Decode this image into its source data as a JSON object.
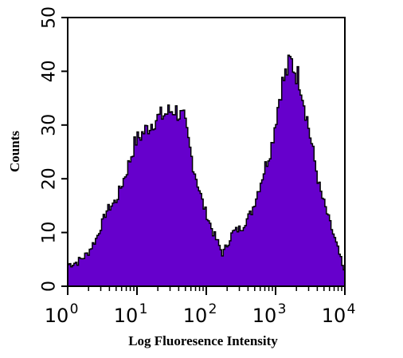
{
  "chart_data": {
    "type": "area",
    "title": "",
    "xlabel": "Log Fluoresence Intensity",
    "ylabel": "Counts",
    "x_scale": "log",
    "xlim": [
      1,
      10000
    ],
    "ylim": [
      0,
      50
    ],
    "yticks": [
      0,
      10,
      20,
      30,
      40,
      50
    ],
    "yticklabels": [
      "0",
      "10",
      "20",
      "30",
      "40",
      "50"
    ],
    "xticks": [
      1,
      10,
      100,
      1000,
      10000
    ],
    "xticklabels": [
      {
        "base": "10",
        "exp": "0"
      },
      {
        "base": "10",
        "exp": "1"
      },
      {
        "base": "10",
        "exp": "2"
      },
      {
        "base": "10",
        "exp": "3"
      },
      {
        "base": "10",
        "exp": "4"
      }
    ],
    "grid": false,
    "fill_color": "#6600cc",
    "edge_color": "#000000",
    "x": [
      1.0,
      1.38,
      1.91,
      2.63,
      3.63,
      5.01,
      6.92,
      9.55,
      13.2,
      18.2,
      25.1,
      34.7,
      47.9,
      66.1,
      91.2,
      126,
      174,
      240,
      331,
      457,
      631,
      871,
      1202,
      1660,
      2291,
      3162,
      4365,
      6026,
      8318,
      10000
    ],
    "values": [
      4,
      4.5,
      6,
      9,
      14,
      16,
      21,
      27,
      29,
      31,
      32,
      33,
      31,
      22,
      15,
      10,
      6,
      10,
      11,
      14,
      20,
      26,
      37,
      42,
      38,
      28,
      18,
      12,
      6,
      2
    ]
  }
}
